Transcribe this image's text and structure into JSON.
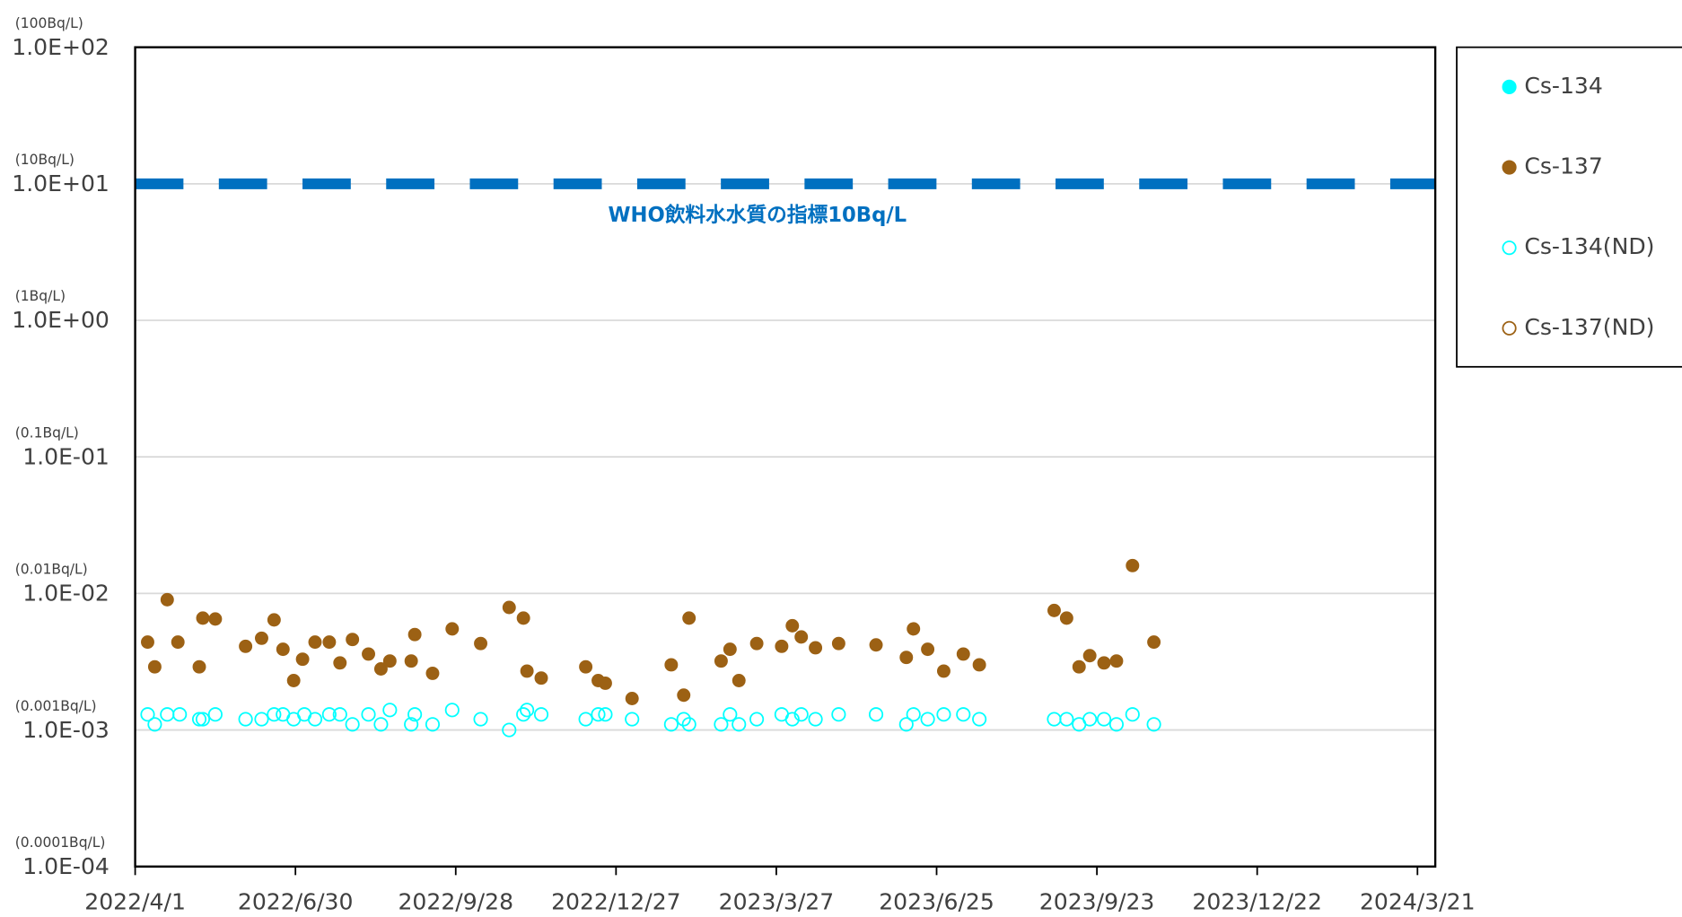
{
  "chart_data": {
    "type": "scatter",
    "xlim": [
      "2022/4/1",
      "2024/3/31"
    ],
    "xticks": [
      "2022/4/1",
      "2022/6/30",
      "2022/9/28",
      "2022/12/27",
      "2023/3/27",
      "2023/6/25",
      "2023/9/23",
      "2023/12/22",
      "2024/3/21"
    ],
    "ylim": [
      0.0001,
      100
    ],
    "log_y": true,
    "grid": true,
    "yticks": [
      {
        "value": 100,
        "label": "1.0E+02"
      },
      {
        "value": 10,
        "label": "1.0E+01"
      },
      {
        "value": 1,
        "label": "1.0E+00"
      },
      {
        "value": 0.1,
        "label": "1.0E-01"
      },
      {
        "value": 0.01,
        "label": "1.0E-02"
      },
      {
        "value": 0.001,
        "label": "1.0E-03"
      },
      {
        "value": 0.0001,
        "label": "1.0E-04"
      }
    ],
    "ytick_units": [
      "(100Bq/L)",
      "(10Bq/L)",
      "(1Bq/L)",
      "(0.1Bq/L)",
      "(0.01Bq/L)",
      "(0.001Bq/L)",
      "(0.0001Bq/L)"
    ],
    "hlines": [
      {
        "value": 10,
        "label": "WHO飲料水水質の指標10Bq/L",
        "color": "#0070c0"
      }
    ],
    "legend": "right",
    "series": [
      {
        "name": "Cs-134",
        "color": "#00ffff",
        "filled": true,
        "x": [],
        "values": []
      },
      {
        "name": "Cs-137",
        "color": "#9c6114",
        "filled": true,
        "x": [
          "2022/4/8",
          "2022/4/12",
          "2022/4/19",
          "2022/4/25",
          "2022/5/7",
          "2022/5/9",
          "2022/5/16",
          "2022/6/2",
          "2022/6/11",
          "2022/6/18",
          "2022/6/23",
          "2022/6/29",
          "2022/7/4",
          "2022/7/11",
          "2022/7/19",
          "2022/7/25",
          "2022/8/1",
          "2022/8/10",
          "2022/8/17",
          "2022/8/22",
          "2022/9/3",
          "2022/9/5",
          "2022/9/15",
          "2022/9/26",
          "2022/10/12",
          "2022/10/28",
          "2022/11/5",
          "2022/11/7",
          "2022/11/15",
          "2022/12/10",
          "2022/12/17",
          "2022/12/21",
          "2023/1/5",
          "2023/1/27",
          "2023/2/3",
          "2023/2/6",
          "2023/2/24",
          "2023/3/1",
          "2023/3/6",
          "2023/3/16",
          "2023/3/30",
          "2023/4/5",
          "2023/4/10",
          "2023/4/18",
          "2023/5/1",
          "2023/5/22",
          "2023/6/8",
          "2023/6/12",
          "2023/6/20",
          "2023/6/29",
          "2023/7/10",
          "2023/7/19",
          "2023/8/30",
          "2023/9/6",
          "2023/9/13",
          "2023/9/19",
          "2023/9/27",
          "2023/10/4",
          "2023/10/13",
          "2023/10/25"
        ],
        "values": [
          0.0044,
          0.0029,
          0.009,
          0.0044,
          0.0029,
          0.0066,
          0.0065,
          0.0041,
          0.0047,
          0.0064,
          0.0039,
          0.0023,
          0.0033,
          0.0044,
          0.0044,
          0.0031,
          0.0046,
          0.0036,
          0.0028,
          0.0032,
          0.0032,
          0.005,
          0.0026,
          0.0055,
          0.0043,
          0.0079,
          0.0066,
          0.0027,
          0.0024,
          0.0029,
          0.0023,
          0.0022,
          0.0017,
          0.003,
          0.0018,
          0.0066,
          0.0032,
          0.0039,
          0.0023,
          0.0043,
          0.0041,
          0.0058,
          0.0048,
          0.004,
          0.0043,
          0.0042,
          0.0034,
          0.0055,
          0.0039,
          0.0027,
          0.0036,
          0.003,
          0.0075,
          0.0066,
          0.0029,
          0.0035,
          0.0031,
          0.0032,
          0.016,
          0.0044
        ]
      },
      {
        "name": "Cs-134(ND)",
        "color": "#00ffff",
        "filled": false,
        "x": [
          "2022/4/8",
          "2022/4/12",
          "2022/4/19",
          "2022/4/26",
          "2022/5/7",
          "2022/5/9",
          "2022/5/16",
          "2022/6/2",
          "2022/6/11",
          "2022/6/18",
          "2022/6/23",
          "2022/6/29",
          "2022/7/5",
          "2022/7/11",
          "2022/7/19",
          "2022/7/25",
          "2022/8/1",
          "2022/8/10",
          "2022/8/17",
          "2022/8/22",
          "2022/9/3",
          "2022/9/5",
          "2022/9/15",
          "2022/9/26",
          "2022/10/12",
          "2022/10/28",
          "2022/11/5",
          "2022/11/7",
          "2022/11/15",
          "2022/12/10",
          "2022/12/17",
          "2022/12/21",
          "2023/1/5",
          "2023/1/27",
          "2023/2/3",
          "2023/2/6",
          "2023/2/24",
          "2023/3/1",
          "2023/3/6",
          "2023/3/16",
          "2023/3/30",
          "2023/4/5",
          "2023/4/10",
          "2023/4/18",
          "2023/5/1",
          "2023/5/22",
          "2023/6/8",
          "2023/6/12",
          "2023/6/20",
          "2023/6/29",
          "2023/7/10",
          "2023/7/19",
          "2023/8/30",
          "2023/9/6",
          "2023/9/13",
          "2023/9/19",
          "2023/9/27",
          "2023/10/4",
          "2023/10/13",
          "2023/10/25"
        ],
        "values": [
          0.0013,
          0.0011,
          0.0013,
          0.0013,
          0.0012,
          0.0012,
          0.0013,
          0.0012,
          0.0012,
          0.0013,
          0.0013,
          0.0012,
          0.0013,
          0.0012,
          0.0013,
          0.0013,
          0.0011,
          0.0013,
          0.0011,
          0.0014,
          0.0011,
          0.0013,
          0.0011,
          0.0014,
          0.0012,
          0.001,
          0.0013,
          0.0014,
          0.0013,
          0.0012,
          0.0013,
          0.0013,
          0.0012,
          0.0011,
          0.0012,
          0.0011,
          0.0011,
          0.0013,
          0.0011,
          0.0012,
          0.0013,
          0.0012,
          0.0013,
          0.0012,
          0.0013,
          0.0013,
          0.0011,
          0.0013,
          0.0012,
          0.0013,
          0.0013,
          0.0012,
          0.0012,
          0.0012,
          0.0011,
          0.0012,
          0.0012,
          0.0011,
          0.0013,
          0.0011
        ]
      },
      {
        "name": "Cs-137(ND)",
        "color": "#9c6114",
        "filled": false,
        "x": [],
        "values": []
      }
    ]
  }
}
